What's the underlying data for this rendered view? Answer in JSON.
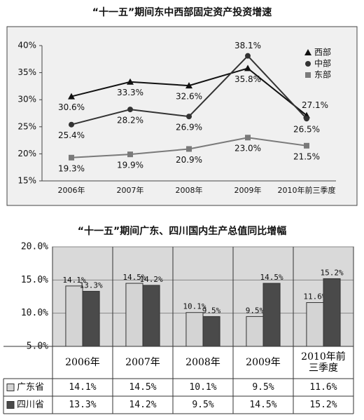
{
  "chart_data": [
    {
      "type": "line",
      "title": "“十一五”期间东中西部固定资产投资增速",
      "categories": [
        "2006年",
        "2007年",
        "2008年",
        "2009年",
        "2010年前三季度"
      ],
      "ylim": [
        15,
        40
      ],
      "yticks": [
        {
          "value": 15,
          "label": "15%"
        },
        {
          "value": 20,
          "label": "20%"
        },
        {
          "value": 25,
          "label": "25%"
        },
        {
          "value": 30,
          "label": "30%"
        },
        {
          "value": 35,
          "label": "35%"
        },
        {
          "value": 40,
          "label": "40%"
        }
      ],
      "legend": "top-right",
      "series": [
        {
          "name": "西部",
          "color": "#111111",
          "marker": "triangle",
          "values": [
            30.6,
            33.3,
            32.6,
            35.8,
            27.1
          ],
          "value_labels": [
            "30.6%",
            "33.3%",
            "32.6%",
            "35.8%",
            "27.1%"
          ]
        },
        {
          "name": "中部",
          "color": "#333333",
          "marker": "circle",
          "values": [
            25.4,
            28.2,
            26.9,
            38.1,
            26.5
          ],
          "value_labels": [
            "25.4%",
            "28.2%",
            "26.9%",
            "38.1%",
            "26.5%"
          ]
        },
        {
          "name": "东部",
          "color": "#7a7a7a",
          "marker": "square",
          "values": [
            19.3,
            19.9,
            20.9,
            23.0,
            21.5
          ],
          "value_labels": [
            "19.3%",
            "19.9%",
            "20.9%",
            "23.0%",
            "21.5%"
          ]
        }
      ]
    },
    {
      "type": "bar",
      "title": "“十一五”期间广东、四川国内生产总值同比增幅",
      "categories": [
        "2006年",
        "2007年",
        "2008年",
        "2009年",
        "2010年前三季度"
      ],
      "ylim": [
        5,
        20
      ],
      "yticks": [
        {
          "value": 5,
          "label": "5.0%"
        },
        {
          "value": 10,
          "label": "10.0%"
        },
        {
          "value": 15,
          "label": "15.0%"
        },
        {
          "value": 20,
          "label": "20.0%"
        }
      ],
      "series": [
        {
          "name": "广东省",
          "color": "#d4d4d4",
          "values": [
            14.1,
            14.5,
            10.1,
            9.5,
            11.6
          ],
          "value_labels": [
            "14.1%",
            "14.5%",
            "10.1%",
            "9.5%",
            "11.6%"
          ]
        },
        {
          "name": "四川省",
          "color": "#4a4a4a",
          "values": [
            13.3,
            14.2,
            9.5,
            14.5,
            15.2
          ],
          "value_labels": [
            "13.3%",
            "14.2%",
            "9.5%",
            "14.5%",
            "15.2%"
          ]
        }
      ]
    }
  ]
}
